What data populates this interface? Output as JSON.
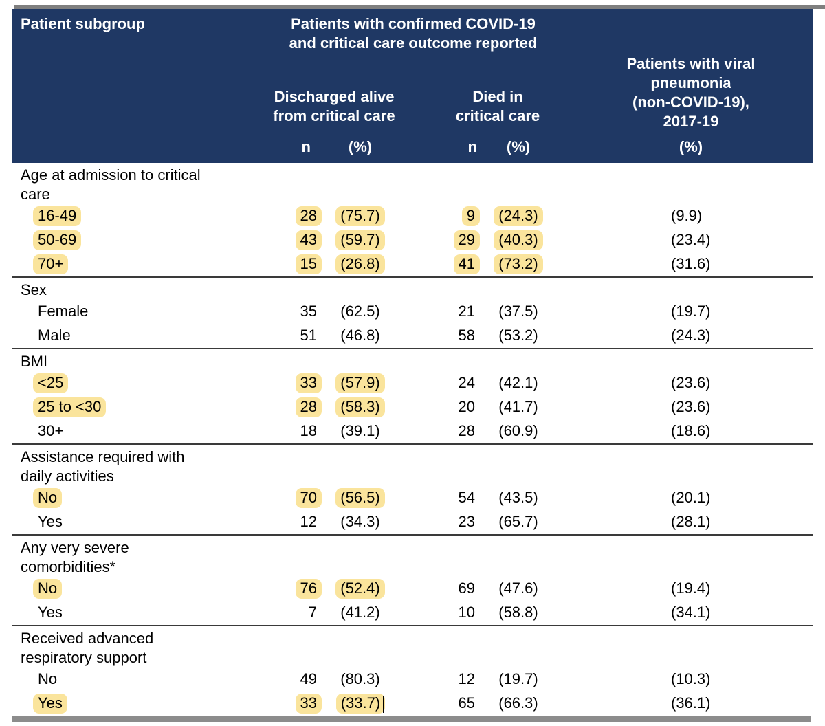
{
  "colors": {
    "header_navy": "#1f3864",
    "highlight_yellow": "#fae49c",
    "top_strip_gray": "#7f7f7f",
    "bottom_bar_gray": "#8c8c8c"
  },
  "header": {
    "patient_subgroup": "Patient subgroup",
    "covid_group": "Patients with confirmed COVID-19\nand critical care outcome reported",
    "discharged": "Discharged alive\nfrom critical care",
    "died": "Died in\ncritical care",
    "viral_group": "Patients with viral\npneumonia\n(non-COVID-19),\n2017-19",
    "viral_died": "Died in\ncritical care",
    "n1": "n",
    "pct1": "(%)",
    "n2": "n",
    "pct2": "(%)",
    "pct3": "(%)"
  },
  "sections": [
    {
      "title": "Age at admission to critical\ncare",
      "rows": [
        {
          "label": "16-49",
          "n1": "28",
          "p1": "(75.7)",
          "n2": "9",
          "p2": "(24.3)",
          "p3": "(9.9)",
          "hl": [
            "label",
            "n1",
            "p1",
            "n2",
            "p2"
          ]
        },
        {
          "label": "50-69",
          "n1": "43",
          "p1": "(59.7)",
          "n2": "29",
          "p2": "(40.3)",
          "p3": "(23.4)",
          "hl": [
            "label",
            "n1",
            "p1",
            "n2",
            "p2"
          ]
        },
        {
          "label": "70+",
          "n1": "15",
          "p1": "(26.8)",
          "n2": "41",
          "p2": "(73.2)",
          "p3": "(31.6)",
          "hl": [
            "label",
            "n1",
            "p1",
            "n2",
            "p2"
          ]
        }
      ]
    },
    {
      "title": "Sex",
      "rows": [
        {
          "label": "Female",
          "n1": "35",
          "p1": "(62.5)",
          "n2": "21",
          "p2": "(37.5)",
          "p3": "(19.7)",
          "hl": []
        },
        {
          "label": "Male",
          "n1": "51",
          "p1": "(46.8)",
          "n2": "58",
          "p2": "(53.2)",
          "p3": "(24.3)",
          "hl": []
        }
      ]
    },
    {
      "title": "BMI",
      "rows": [
        {
          "label": "<25",
          "n1": "33",
          "p1": "(57.9)",
          "n2": "24",
          "p2": "(42.1)",
          "p3": "(23.6)",
          "hl": [
            "label",
            "n1",
            "p1"
          ]
        },
        {
          "label": "25 to <30",
          "n1": "28",
          "p1": "(58.3)",
          "n2": "20",
          "p2": "(41.7)",
          "p3": "(23.6)",
          "hl": [
            "label",
            "n1",
            "p1"
          ]
        },
        {
          "label": "30+",
          "n1": "18",
          "p1": "(39.1)",
          "n2": "28",
          "p2": "(60.9)",
          "p3": "(18.6)",
          "hl": []
        }
      ]
    },
    {
      "title": "Assistance required with\ndaily activities",
      "rows": [
        {
          "label": "No",
          "n1": "70",
          "p1": "(56.5)",
          "n2": "54",
          "p2": "(43.5)",
          "p3": "(20.1)",
          "hl": [
            "label",
            "n1",
            "p1"
          ]
        },
        {
          "label": "Yes",
          "n1": "12",
          "p1": "(34.3)",
          "n2": "23",
          "p2": "(65.7)",
          "p3": "(28.1)",
          "hl": []
        }
      ]
    },
    {
      "title": "Any very severe\ncomorbidities*",
      "rows": [
        {
          "label": "No",
          "n1": "76",
          "p1": "(52.4)",
          "n2": "69",
          "p2": "(47.6)",
          "p3": "(19.4)",
          "hl": [
            "label",
            "n1",
            "p1"
          ]
        },
        {
          "label": "Yes",
          "n1": "7",
          "p1": "(41.2)",
          "n2": "10",
          "p2": "(58.8)",
          "p3": "(34.1)",
          "hl": []
        }
      ]
    },
    {
      "title": "Received advanced\nrespiratory support",
      "rows": [
        {
          "label": "No",
          "n1": "49",
          "p1": "(80.3)",
          "n2": "12",
          "p2": "(19.7)",
          "p3": "(10.3)",
          "hl": []
        },
        {
          "label": "Yes",
          "n1": "33",
          "p1": "(33.7)",
          "n2": "65",
          "p2": "(66.3)",
          "p3": "(36.1)",
          "hl": [
            "label",
            "n1",
            "p1"
          ],
          "cursor_after": "p1"
        }
      ]
    }
  ]
}
